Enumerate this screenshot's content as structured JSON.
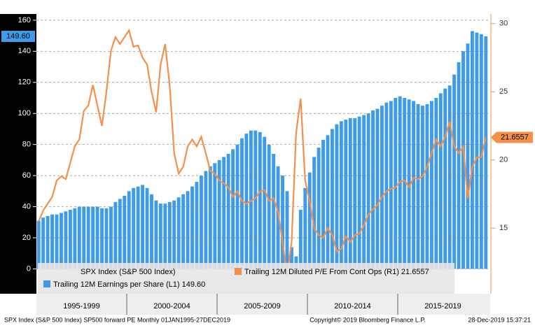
{
  "chart_data": {
    "type": "bar_line",
    "title": "SPX Index (S&P 500 Index)",
    "periods": [
      "1995-1999",
      "2000-2004",
      "2005-2009",
      "2010-2014",
      "2015-2019"
    ],
    "ylim": [
      -16,
      164
    ],
    "yticks": [
      0,
      20,
      40,
      60,
      80,
      100,
      120,
      140,
      160
    ],
    "y2lim": [
      10.2,
      30.7
    ],
    "y2ticks": [
      15,
      20,
      25,
      30
    ],
    "grid": true,
    "series": [
      {
        "name": "Trailing 12M Earnings per Share  (L1) 149.60",
        "type": "bar",
        "color": "#3d9be9",
        "last_label": "149.60",
        "values": [
          31,
          33,
          34,
          35,
          35,
          36,
          37,
          38,
          39,
          40,
          40,
          40,
          40,
          40,
          39,
          39,
          40,
          43,
          45,
          47,
          50,
          52,
          53,
          54,
          52,
          48,
          44,
          42,
          42,
          43,
          44,
          46,
          48,
          50,
          53,
          56,
          60,
          63,
          66,
          68,
          70,
          72,
          74,
          77,
          80,
          84,
          87,
          89,
          89,
          88,
          85,
          80,
          74,
          66,
          60,
          50,
          14,
          8,
          38,
          52,
          62,
          72,
          78,
          83,
          86,
          90,
          93,
          95,
          96,
          97,
          97,
          98,
          99,
          100,
          102,
          103,
          105,
          107,
          108,
          110,
          111,
          110,
          109,
          108,
          106,
          105,
          106,
          108,
          110,
          113,
          116,
          118,
          125,
          133,
          140,
          145,
          153,
          152,
          151,
          149.6
        ]
      },
      {
        "name": "Trailing 12M Diluted P/E From Cont Ops  (R1) 21.6557",
        "type": "line",
        "axis": "y2",
        "color": "#f5904a",
        "last_label": "21.6557",
        "values": [
          15.5,
          16.3,
          16.8,
          17.3,
          18.5,
          18.8,
          18.6,
          19.8,
          21,
          21.5,
          23.6,
          24,
          25.5,
          24,
          22.5,
          25,
          28,
          29,
          28.5,
          29,
          29.5,
          28.3,
          28.4,
          27.5,
          27,
          25,
          23.5,
          27,
          28.5,
          25.5,
          20.5,
          19,
          19.5,
          21,
          21.5,
          21,
          21.7,
          20.5,
          19.2,
          19,
          18.5,
          18.3,
          18,
          17.3,
          17.7,
          17,
          16.8,
          17,
          17.2,
          17.7,
          17.8,
          17,
          17.2,
          16.2,
          14,
          11.5,
          14,
          22,
          24.5,
          18.5,
          17,
          15,
          14.5,
          14.3,
          15,
          14.5,
          13.3,
          13.5,
          14.4,
          14,
          14.5,
          14.6,
          15.2,
          16,
          16.4,
          16.7,
          17.3,
          17.7,
          17.9,
          18,
          18.4,
          18.5,
          18,
          18.7,
          18.6,
          18.8,
          19.5,
          20.5,
          21.5,
          21,
          21.7,
          22.8,
          21,
          20.5,
          21,
          17.2,
          19.5,
          20.2,
          20.2,
          21.6557
        ]
      }
    ],
    "footer_left": "SPX Index (S&P 500 Index) SP500 forward PE  Monthly 01JAN1995-27DEC2019",
    "footer_center": "Copyright© 2019 Bloomberg Finance L.P.",
    "footer_right": "28-Dec-2019 15:37:21"
  }
}
